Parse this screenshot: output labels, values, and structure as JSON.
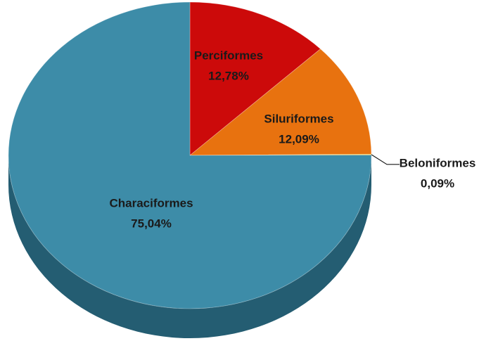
{
  "chart_data": {
    "type": "pie",
    "categories": [
      "Perciformes",
      "Siluriformes",
      "Beloniformes",
      "Characiformes"
    ],
    "values": [
      12.78,
      12.09,
      0.09,
      75.04
    ],
    "value_labels": [
      "12,78%",
      "12,09%",
      "0,09%",
      "75,04%"
    ],
    "colors": [
      "#cc0a0a",
      "#e8720f",
      "#f2c230",
      "#3d8ca8"
    ],
    "side_colors": [
      "#8a0606",
      "#a9520a",
      "#b08a20",
      "#245d72"
    ]
  }
}
